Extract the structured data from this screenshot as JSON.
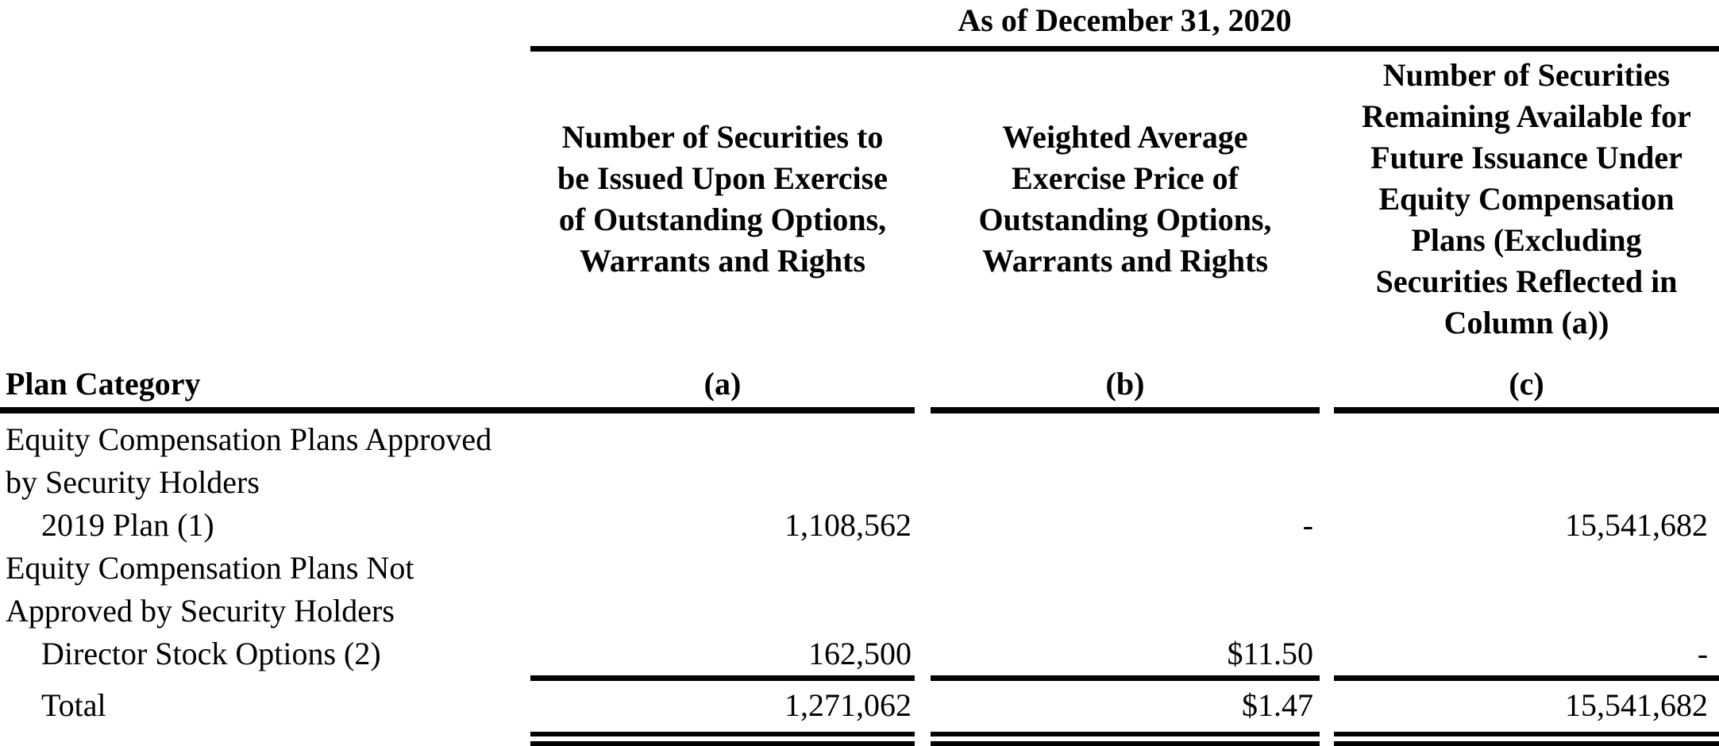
{
  "document": {
    "title": "As of December 31, 2020",
    "plan_category_label": "Plan Category",
    "columns": {
      "a": {
        "header": "Number of Securities to\nbe Issued Upon Exercise\nof Outstanding Options,\nWarrants and Rights",
        "letter": "(a)"
      },
      "b": {
        "header": "Weighted Average\nExercise Price of\nOutstanding Options,\nWarrants and Rights",
        "letter": "(b)"
      },
      "c": {
        "header": "Number of Securities\nRemaining Available for\nFuture Issuance Under\nEquity Compensation\nPlans (Excluding\nSecurities Reflected in\nColumn (a))",
        "letter": "(c)"
      }
    },
    "rows": [
      {
        "label": "Equity Compensation Plans Approved\nby Security Holders",
        "a": "",
        "b": "",
        "c": ""
      },
      {
        "label": "2019 Plan (1)",
        "a": "1,108,562",
        "b": "-",
        "c": "15,541,682"
      },
      {
        "label": "Equity Compensation Plans Not\nApproved by Security Holders",
        "a": "",
        "b": "",
        "c": ""
      },
      {
        "label": "Director Stock Options (2)",
        "a": "162,500",
        "b": "$11.50",
        "c": "-"
      },
      {
        "label": "Total",
        "a": "1,271,062",
        "b": "$1.47",
        "c": "15,541,682"
      }
    ],
    "colors": {
      "text": "#000000",
      "background": "#ffffff",
      "rule": "#000000"
    }
  }
}
